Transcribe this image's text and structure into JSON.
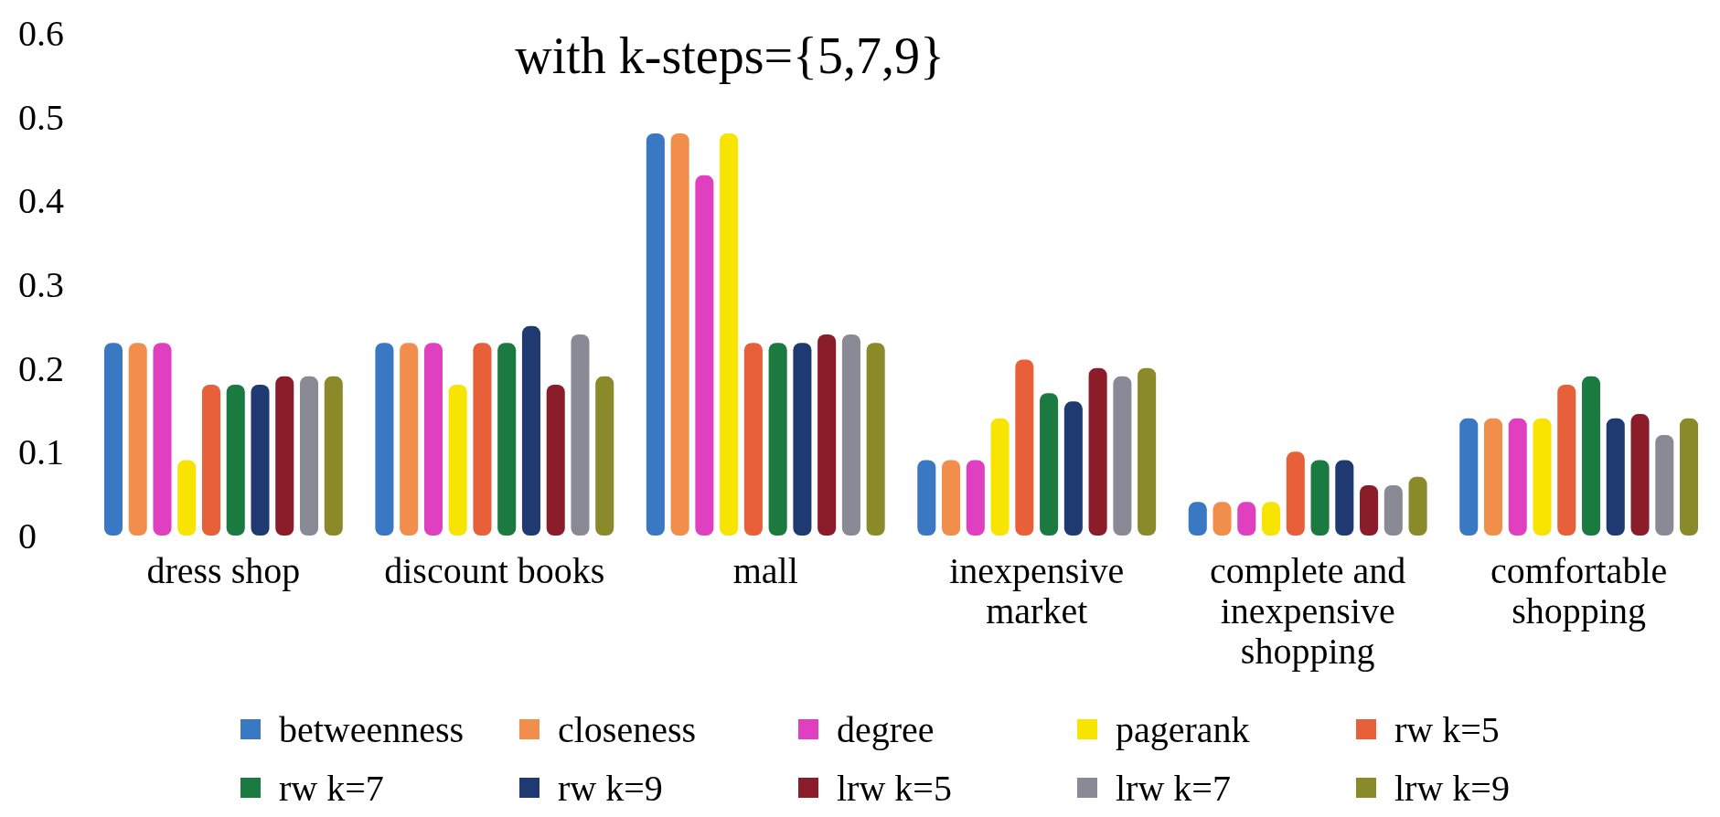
{
  "chart_data": {
    "type": "bar",
    "title": "with k-steps={5,7,9}",
    "categories": [
      "dress shop",
      "discount books",
      "mall",
      "inexpensive market",
      "complete and inexpensive shopping",
      "comfortable shopping"
    ],
    "series": [
      {
        "name": "betweenness",
        "color": "#3a78c4",
        "values": [
          0.23,
          0.23,
          0.48,
          0.09,
          0.04,
          0.14
        ]
      },
      {
        "name": "closeness",
        "color": "#f28e4b",
        "values": [
          0.23,
          0.23,
          0.48,
          0.09,
          0.04,
          0.14
        ]
      },
      {
        "name": "degree",
        "color": "#e040c0",
        "values": [
          0.23,
          0.23,
          0.43,
          0.09,
          0.04,
          0.14
        ]
      },
      {
        "name": "pagerank",
        "color": "#f7e400",
        "values": [
          0.09,
          0.18,
          0.48,
          0.14,
          0.04,
          0.14
        ]
      },
      {
        "name": "rw k=5",
        "color": "#e8603a",
        "values": [
          0.18,
          0.23,
          0.23,
          0.21,
          0.1,
          0.18
        ]
      },
      {
        "name": "rw k=7",
        "color": "#1a7a40",
        "values": [
          0.18,
          0.23,
          0.23,
          0.17,
          0.09,
          0.19
        ]
      },
      {
        "name": "rw k=9",
        "color": "#1f3a70",
        "values": [
          0.18,
          0.25,
          0.23,
          0.16,
          0.09,
          0.14
        ]
      },
      {
        "name": "lrw k=5",
        "color": "#8b1c2a",
        "values": [
          0.19,
          0.18,
          0.24,
          0.2,
          0.06,
          0.145
        ]
      },
      {
        "name": "lrw k=7",
        "color": "#8a8a96",
        "values": [
          0.19,
          0.24,
          0.24,
          0.19,
          0.06,
          0.12
        ]
      },
      {
        "name": "lrw k=9",
        "color": "#8a8a2a",
        "values": [
          0.19,
          0.19,
          0.23,
          0.2,
          0.07,
          0.14
        ]
      }
    ],
    "ylim": [
      0,
      0.6
    ],
    "yticks": [
      0,
      0.1,
      0.2,
      0.3,
      0.4,
      0.5,
      0.6
    ],
    "grid": false,
    "legend": "bottom"
  }
}
